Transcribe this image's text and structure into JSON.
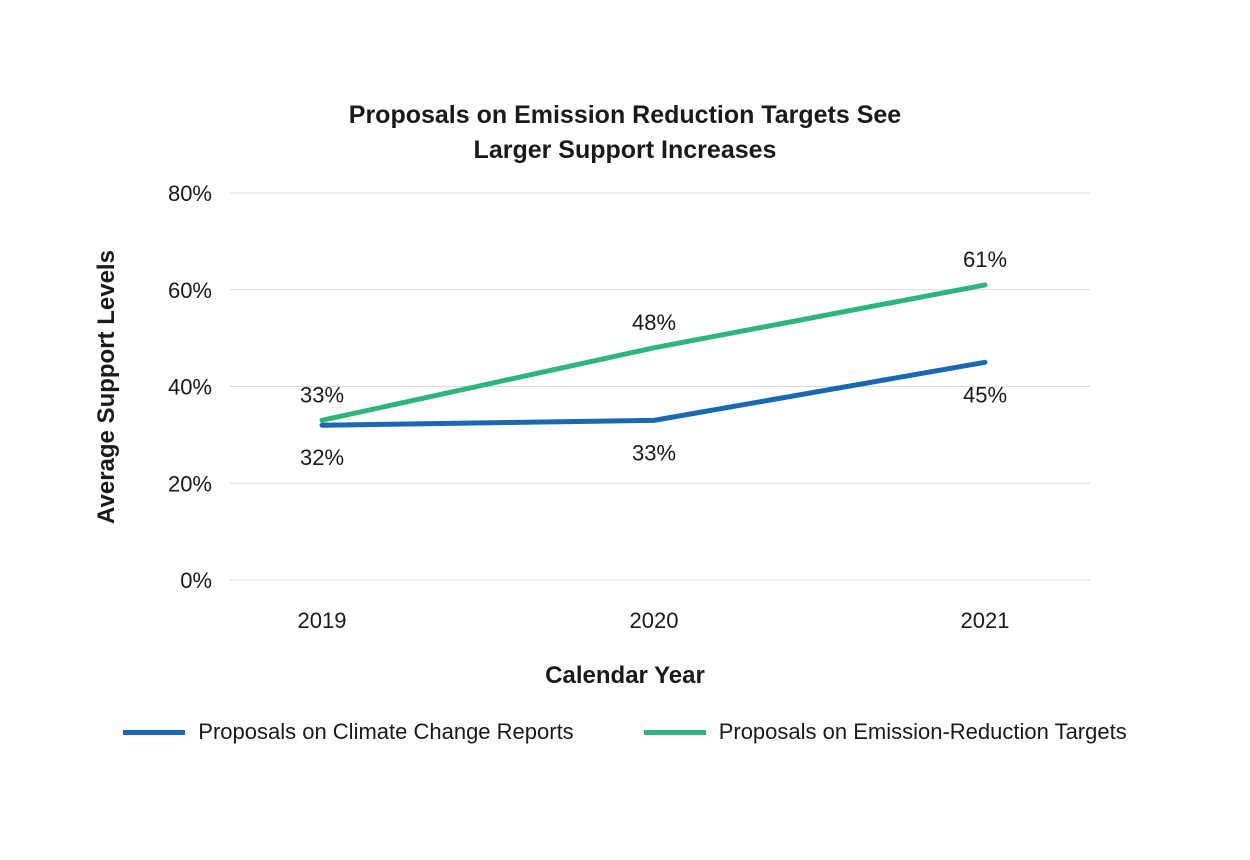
{
  "chart_data": {
    "type": "line",
    "title": "Proposals on Emission Reduction Targets See Larger Support Increases",
    "title_lines": [
      "Proposals on Emission Reduction Targets See",
      "Larger Support Increases"
    ],
    "xlabel": "Calendar Year",
    "ylabel": "Average Support Levels",
    "categories": [
      "2019",
      "2020",
      "2021"
    ],
    "series": [
      {
        "name": "Proposals on Climate Change Reports",
        "color": "#1a68b2",
        "values": [
          32,
          33,
          45
        ],
        "label_position": "below"
      },
      {
        "name": "Proposals on Emission-Reduction Targets",
        "color": "#2db57e",
        "values": [
          33,
          48,
          61
        ],
        "label_position": "above"
      }
    ],
    "ylim": [
      0,
      80
    ],
    "yticks": [
      0,
      20,
      40,
      60,
      80
    ],
    "ytick_labels": [
      "0%",
      "20%",
      "40%",
      "60%",
      "80%"
    ],
    "value_suffix": "%",
    "grid": true,
    "gridline_color": "#d9d9d9",
    "legend_position": "bottom"
  }
}
